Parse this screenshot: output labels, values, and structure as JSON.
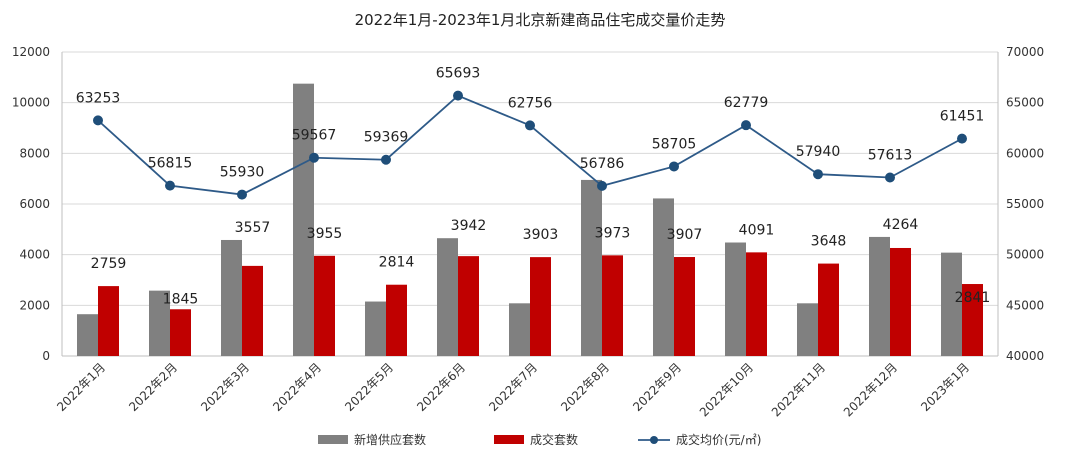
{
  "chart_data": {
    "type": "bar",
    "title": "2022年1月-2023年1月北京新建商品住宅成交量价走势",
    "categories": [
      "2022年1月",
      "2022年2月",
      "2022年3月",
      "2022年4月",
      "2022年5月",
      "2022年6月",
      "2022年7月",
      "2022年8月",
      "2022年9月",
      "2022年10月",
      "2022年11月",
      "2022年12月",
      "2023年1月"
    ],
    "y_left": {
      "min": 0,
      "max": 12000,
      "ticks": [
        "0",
        "2000",
        "4000",
        "6000",
        "8000",
        "10000",
        "12000"
      ]
    },
    "y_right": {
      "min": 40000,
      "max": 70000,
      "ticks": [
        "40000",
        "45000",
        "50000",
        "55000",
        "60000",
        "65000",
        "70000"
      ]
    },
    "grid": true,
    "legend_position": "bottom",
    "series": [
      {
        "name": "新增供应套数",
        "type": "bar",
        "axis": "left",
        "color": "#808080",
        "values": [
          1650,
          2580,
          4580,
          10750,
          2150,
          4650,
          2080,
          6950,
          6220,
          4480,
          2080,
          4700,
          4080
        ],
        "labels": null
      },
      {
        "name": "成交套数",
        "type": "bar",
        "axis": "left",
        "color": "#c00000",
        "values": [
          2759,
          1845,
          3557,
          3955,
          2814,
          3942,
          3903,
          3973,
          3907,
          4091,
          3648,
          4264,
          2841
        ],
        "labels": [
          "2759",
          "1845",
          "3557",
          "3955",
          "2814",
          "3942",
          "3903",
          "3973",
          "3907",
          "4091",
          "3648",
          "4264",
          "2841"
        ]
      },
      {
        "name": "成交均价(元/㎡)",
        "type": "line",
        "axis": "right",
        "color": "#2e5a88",
        "values": [
          63253,
          56815,
          55930,
          59567,
          59369,
          65693,
          62756,
          56786,
          58705,
          62779,
          57940,
          57613,
          61451
        ],
        "labels": [
          "63253",
          "56815",
          "55930",
          "59567",
          "59369",
          "65693",
          "62756",
          "56786",
          "58705",
          "62779",
          "57940",
          "57613",
          "61451"
        ]
      }
    ]
  }
}
